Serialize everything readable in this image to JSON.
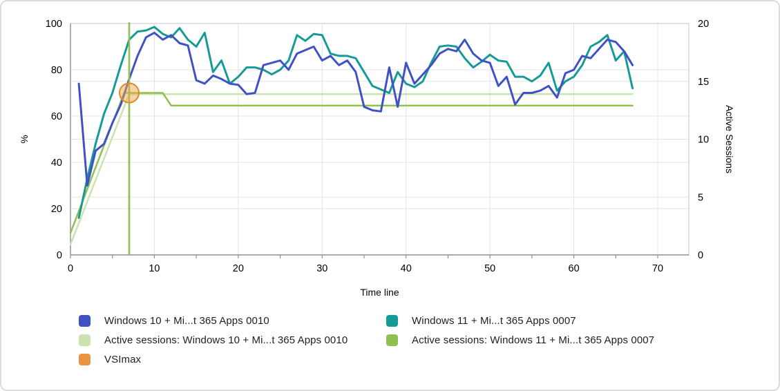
{
  "chart_data": {
    "type": "line",
    "title": "",
    "xlabel": "Time line",
    "ylabel_left": "%",
    "ylabel_right": "Active Sessions",
    "xlim": [
      0,
      73.7
    ],
    "ylim_left": [
      0,
      100
    ],
    "ylim_right": [
      0,
      20
    ],
    "xticks_major": [
      0,
      10,
      20,
      30,
      40,
      50,
      60,
      70
    ],
    "xticks_minor": [
      5,
      15,
      25,
      35,
      45,
      55,
      65
    ],
    "yticks_left": [
      0,
      20,
      40,
      60,
      80,
      100
    ],
    "yticks_right": [
      0,
      5,
      10,
      15,
      20
    ],
    "grid_x": [
      10,
      20,
      30,
      40,
      50,
      60,
      70
    ],
    "grid_y_pct": [
      20,
      25,
      40,
      50,
      60,
      75,
      80,
      100
    ],
    "grid_on": true,
    "legend_position": "bottom",
    "series": [
      {
        "name": "Windows 10 + Mi...t 365 Apps 0010",
        "axis": "left",
        "color": "#3f51c5",
        "width": 3,
        "points": [
          [
            1,
            74
          ],
          [
            2,
            30
          ],
          [
            3,
            45
          ],
          [
            4,
            48
          ],
          [
            5,
            57
          ],
          [
            6,
            65
          ],
          [
            7,
            76
          ],
          [
            8,
            86
          ],
          [
            9,
            94
          ],
          [
            10,
            96
          ],
          [
            11,
            93
          ],
          [
            12,
            95
          ],
          [
            13,
            91.5
          ],
          [
            14,
            90.5
          ],
          [
            15,
            75.5
          ],
          [
            16,
            74
          ],
          [
            17,
            77.5
          ],
          [
            18,
            76
          ],
          [
            19,
            74
          ],
          [
            20,
            73.5
          ],
          [
            21,
            69.5
          ],
          [
            22,
            70
          ],
          [
            23,
            82
          ],
          [
            24,
            83
          ],
          [
            25,
            84
          ],
          [
            26,
            80
          ],
          [
            27,
            87
          ],
          [
            28,
            88.5
          ],
          [
            29,
            90
          ],
          [
            30,
            84
          ],
          [
            31,
            86
          ],
          [
            32,
            82
          ],
          [
            33,
            84
          ],
          [
            34,
            79
          ],
          [
            35,
            64
          ],
          [
            36,
            62.5
          ],
          [
            37,
            62
          ],
          [
            38,
            81
          ],
          [
            39,
            64
          ],
          [
            40,
            83
          ],
          [
            41,
            74
          ],
          [
            42,
            78
          ],
          [
            43,
            82
          ],
          [
            44,
            87
          ],
          [
            45,
            89
          ],
          [
            46,
            88
          ],
          [
            47,
            93
          ],
          [
            48,
            87
          ],
          [
            49,
            84
          ],
          [
            50,
            83
          ],
          [
            51,
            73
          ],
          [
            52,
            77
          ],
          [
            53,
            65
          ],
          [
            54,
            70
          ],
          [
            55,
            70
          ],
          [
            56,
            71
          ],
          [
            57,
            73
          ],
          [
            58,
            68
          ],
          [
            59,
            78.5
          ],
          [
            60,
            80
          ],
          [
            61,
            86
          ],
          [
            62,
            85
          ],
          [
            63,
            89
          ],
          [
            64,
            93
          ],
          [
            65,
            92
          ],
          [
            66,
            88
          ],
          [
            67,
            82
          ]
        ]
      },
      {
        "name": "Windows 11 + Mi...t 365 Apps 0007",
        "axis": "left",
        "color": "#169a97",
        "width": 3,
        "points": [
          [
            1,
            16
          ],
          [
            2,
            33
          ],
          [
            3,
            48
          ],
          [
            4,
            61
          ],
          [
            5,
            70
          ],
          [
            6,
            82
          ],
          [
            7,
            93
          ],
          [
            8,
            96.5
          ],
          [
            9,
            97
          ],
          [
            10,
            98.5
          ],
          [
            11,
            95.5
          ],
          [
            12,
            94
          ],
          [
            13,
            98
          ],
          [
            14,
            93
          ],
          [
            15,
            90
          ],
          [
            16,
            96
          ],
          [
            17,
            79
          ],
          [
            18,
            84
          ],
          [
            19,
            74
          ],
          [
            20,
            77
          ],
          [
            21,
            81
          ],
          [
            22,
            81
          ],
          [
            23,
            80
          ],
          [
            24,
            78
          ],
          [
            25,
            80
          ],
          [
            26,
            84
          ],
          [
            27,
            95
          ],
          [
            28,
            92.5
          ],
          [
            29,
            95.5
          ],
          [
            30,
            95
          ],
          [
            31,
            87
          ],
          [
            32,
            86
          ],
          [
            33,
            86
          ],
          [
            34,
            85
          ],
          [
            35,
            79
          ],
          [
            36,
            73
          ],
          [
            37,
            71.5
          ],
          [
            38,
            70
          ],
          [
            39,
            79
          ],
          [
            40,
            74
          ],
          [
            41,
            72.5
          ],
          [
            42,
            75
          ],
          [
            43,
            83
          ],
          [
            44,
            90
          ],
          [
            45,
            90.5
          ],
          [
            46,
            90
          ],
          [
            47,
            85
          ],
          [
            48,
            81
          ],
          [
            49,
            83.5
          ],
          [
            50,
            86.5
          ],
          [
            51,
            84
          ],
          [
            52,
            83.5
          ],
          [
            53,
            77
          ],
          [
            54,
            77
          ],
          [
            55,
            75
          ],
          [
            56,
            77.5
          ],
          [
            57,
            83
          ],
          [
            58,
            71
          ],
          [
            59,
            75
          ],
          [
            60,
            77
          ],
          [
            61,
            82
          ],
          [
            62,
            90
          ],
          [
            63,
            92
          ],
          [
            64,
            95
          ],
          [
            65,
            84
          ],
          [
            66,
            88
          ],
          [
            67,
            72
          ]
        ]
      },
      {
        "name": "Active sessions: Windows 10 + Mi...t 365 Apps 0010",
        "axis": "right",
        "color": "#c9e4ae",
        "width": 2.5,
        "steady_sessions": 14,
        "points": [
          [
            0,
            4.5
          ],
          [
            7,
            69.5
          ],
          [
            67,
            69.5
          ]
        ]
      },
      {
        "name": "Active sessions: Windows 11 + Mi...t 365 Apps 0007",
        "axis": "right",
        "color": "#8ec14f",
        "width": 2.5,
        "steady_sessions_before_drop": 14,
        "steady_sessions_after_drop": 13,
        "points": [
          [
            0,
            9.5
          ],
          [
            6.4,
            70
          ],
          [
            11,
            70
          ],
          [
            12,
            64.5
          ],
          [
            67,
            64.5
          ]
        ]
      }
    ],
    "vsimax_marker": {
      "label": "VSImax",
      "x": 7,
      "y_pct": 70,
      "line_color": "#8ec14f",
      "marker_fill": "#f2a84d",
      "marker_stroke": "#e0882a"
    }
  },
  "legend": {
    "items": [
      {
        "label": "Windows 10 + Mi...t 365 Apps 0010",
        "color": "#3f51c5"
      },
      {
        "label": "Windows 11 + Mi...t 365 Apps 0007",
        "color": "#169a97"
      },
      {
        "label": "Active sessions: Windows 10 + Mi...t 365 Apps 0010",
        "color": "#c9e4ae"
      },
      {
        "label": "Active sessions: Windows 11 + Mi...t 365 Apps 0007",
        "color": "#8ec14f"
      },
      {
        "label": "VSImax",
        "color": "#eb9440"
      }
    ]
  },
  "style_colors": {
    "gridline": "#e3e3e3",
    "frame": "#c6c6c6",
    "axis": "#8f8f8f",
    "tick_text": "#000000"
  }
}
